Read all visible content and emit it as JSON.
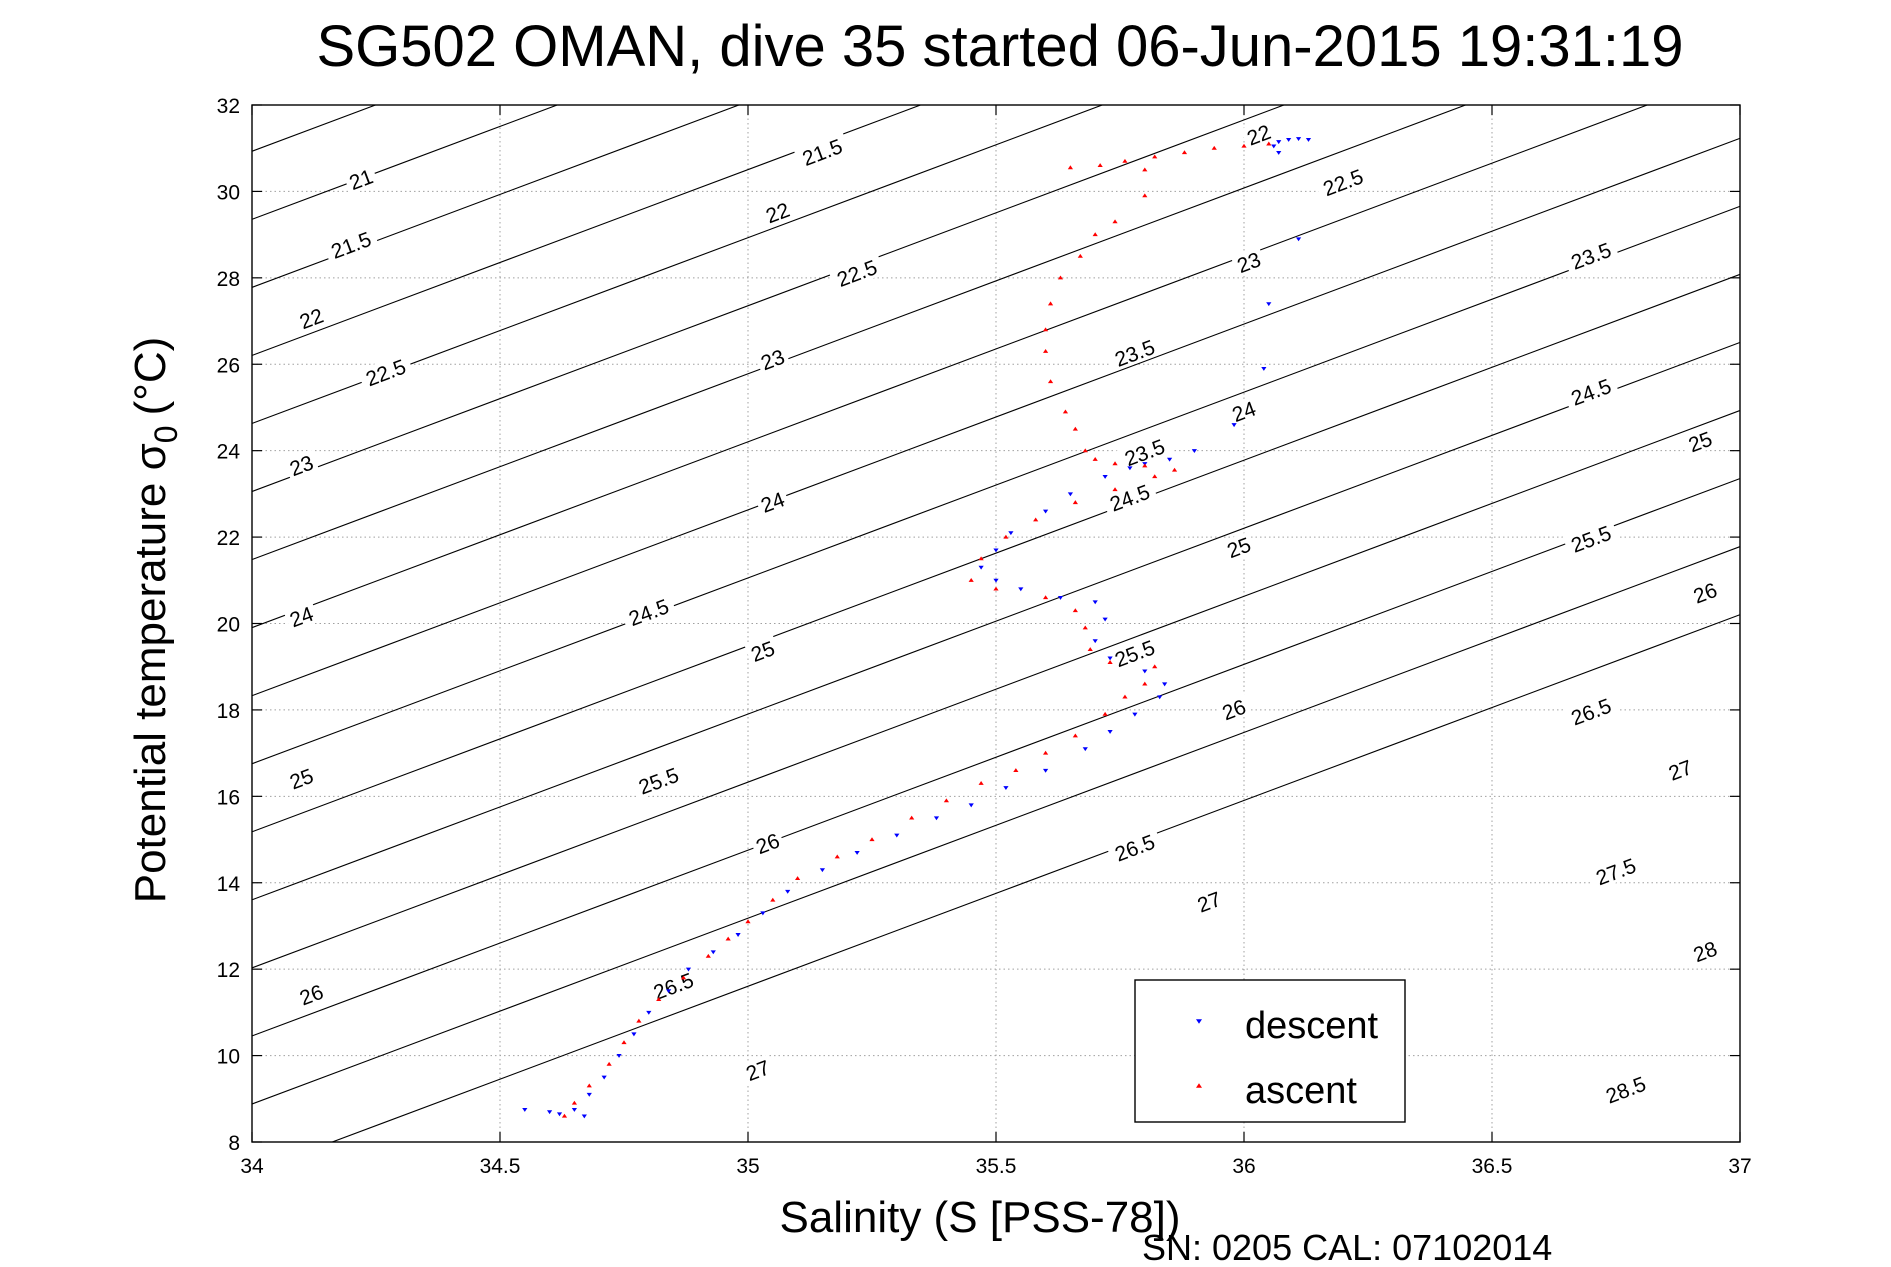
{
  "chart_data": {
    "type": "scatter",
    "title": "SG502 OMAN, dive 35 started 06-Jun-2015 19:31:19",
    "xlabel": "Salinity (S [PSS-78])",
    "ylabel_main": "Potential temperature σ",
    "ylabel_sub": "0",
    "ylabel_unit": "(°C)",
    "footer": "SN: 0205  CAL: 07102014",
    "xlim": [
      34,
      37
    ],
    "ylim": [
      8,
      32
    ],
    "x_ticks": [
      34,
      34.5,
      35,
      35.5,
      36,
      36.5,
      37
    ],
    "x_tick_labels": [
      "34",
      "34.5",
      "35",
      "35.5",
      "36",
      "36.5",
      "37"
    ],
    "y_ticks": [
      8,
      10,
      12,
      14,
      16,
      18,
      20,
      22,
      24,
      26,
      28,
      30,
      32
    ],
    "y_tick_labels": [
      "8",
      "10",
      "12",
      "14",
      "16",
      "18",
      "20",
      "22",
      "24",
      "26",
      "28",
      "30",
      "32"
    ],
    "grid": true,
    "legend_position": "bottom-right",
    "contour_levels": [
      21,
      21.5,
      22,
      22.5,
      23,
      23.5,
      24,
      24.5,
      25,
      25.5,
      26,
      26.5,
      27,
      27.5,
      28,
      28.5
    ],
    "contour_labels": [
      {
        "text": "21",
        "s": 34.22,
        "t": 30.27
      },
      {
        "text": "21.5",
        "s": 34.2,
        "t": 28.75
      },
      {
        "text": "22",
        "s": 34.12,
        "t": 27.05
      },
      {
        "text": "22.5",
        "s": 34.27,
        "t": 25.8
      },
      {
        "text": "23",
        "s": 34.1,
        "t": 23.65
      },
      {
        "text": "23.5",
        "s": 35.8,
        "t": 23.95
      },
      {
        "text": "24",
        "s": 34.1,
        "t": 20.15
      },
      {
        "text": "24.5",
        "s": 34.8,
        "t": 20.25
      },
      {
        "text": "25",
        "s": 34.1,
        "t": 16.4
      },
      {
        "text": "25.5",
        "s": 34.82,
        "t": 16.35
      },
      {
        "text": "26",
        "s": 34.12,
        "t": 11.4
      },
      {
        "text": "26.5",
        "s": 34.85,
        "t": 11.6
      },
      {
        "text": "27",
        "s": 35.02,
        "t": 9.65
      },
      {
        "text": "21.5",
        "s": 35.15,
        "t": 30.9
      },
      {
        "text": "22",
        "s": 35.06,
        "t": 29.5
      },
      {
        "text": "22.5",
        "s": 35.22,
        "t": 28.1
      },
      {
        "text": "23",
        "s": 35.05,
        "t": 26.1
      },
      {
        "text": "23.5",
        "s": 35.78,
        "t": 26.25
      },
      {
        "text": "24",
        "s": 35.05,
        "t": 22.8
      },
      {
        "text": "24.5",
        "s": 35.77,
        "t": 22.9
      },
      {
        "text": "25",
        "s": 35.03,
        "t": 19.35
      },
      {
        "text": "25.5",
        "s": 35.78,
        "t": 19.3
      },
      {
        "text": "26",
        "s": 35.04,
        "t": 14.9
      },
      {
        "text": "26.5",
        "s": 35.78,
        "t": 14.8
      },
      {
        "text": "27",
        "s": 35.93,
        "t": 13.55
      },
      {
        "text": "22",
        "s": 36.03,
        "t": 31.3
      },
      {
        "text": "22.5",
        "s": 36.2,
        "t": 30.2
      },
      {
        "text": "23",
        "s": 36.01,
        "t": 28.35
      },
      {
        "text": "24",
        "s": 36.0,
        "t": 24.9
      },
      {
        "text": "25",
        "s": 35.99,
        "t": 21.75
      },
      {
        "text": "26",
        "s": 35.98,
        "t": 18.0
      },
      {
        "text": "23.5",
        "s": 36.7,
        "t": 28.5
      },
      {
        "text": "24.5",
        "s": 36.7,
        "t": 25.35
      },
      {
        "text": "25.5",
        "s": 36.7,
        "t": 21.95
      },
      {
        "text": "26.5",
        "s": 36.7,
        "t": 17.95
      },
      {
        "text": "27.5",
        "s": 36.75,
        "t": 14.25
      },
      {
        "text": "25",
        "s": 36.92,
        "t": 24.2
      },
      {
        "text": "26",
        "s": 36.93,
        "t": 20.7
      },
      {
        "text": "27",
        "s": 36.88,
        "t": 16.6
      },
      {
        "text": "28",
        "s": 36.93,
        "t": 12.4
      },
      {
        "text": "28.5",
        "s": 36.77,
        "t": 9.2
      }
    ],
    "series": [
      {
        "name": "descent",
        "color": "#0000ff",
        "marker": "triangle-down",
        "points": [
          [
            36.13,
            31.2
          ],
          [
            36.11,
            31.22
          ],
          [
            36.09,
            31.2
          ],
          [
            36.07,
            31.15
          ],
          [
            36.06,
            31.05
          ],
          [
            36.07,
            30.9
          ],
          [
            36.11,
            28.9
          ],
          [
            36.05,
            27.4
          ],
          [
            36.04,
            25.9
          ],
          [
            35.98,
            24.6
          ],
          [
            35.9,
            24.0
          ],
          [
            35.85,
            23.8
          ],
          [
            35.8,
            23.7
          ],
          [
            35.77,
            23.6
          ],
          [
            35.72,
            23.4
          ],
          [
            35.65,
            23.0
          ],
          [
            35.6,
            22.6
          ],
          [
            35.53,
            22.1
          ],
          [
            35.5,
            21.7
          ],
          [
            35.47,
            21.3
          ],
          [
            35.5,
            21.0
          ],
          [
            35.55,
            20.8
          ],
          [
            35.63,
            20.6
          ],
          [
            35.7,
            20.5
          ],
          [
            35.72,
            20.1
          ],
          [
            35.7,
            19.6
          ],
          [
            35.73,
            19.2
          ],
          [
            35.8,
            18.9
          ],
          [
            35.84,
            18.6
          ],
          [
            35.83,
            18.3
          ],
          [
            35.78,
            17.9
          ],
          [
            35.73,
            17.5
          ],
          [
            35.68,
            17.1
          ],
          [
            35.6,
            16.6
          ],
          [
            35.52,
            16.2
          ],
          [
            35.45,
            15.8
          ],
          [
            35.38,
            15.5
          ],
          [
            35.3,
            15.1
          ],
          [
            35.22,
            14.7
          ],
          [
            35.15,
            14.3
          ],
          [
            35.08,
            13.8
          ],
          [
            35.03,
            13.3
          ],
          [
            34.98,
            12.8
          ],
          [
            34.93,
            12.4
          ],
          [
            34.88,
            12.0
          ],
          [
            34.84,
            11.5
          ],
          [
            34.8,
            11.0
          ],
          [
            34.77,
            10.5
          ],
          [
            34.74,
            10.0
          ],
          [
            34.71,
            9.5
          ],
          [
            34.68,
            9.1
          ],
          [
            34.65,
            8.75
          ],
          [
            34.67,
            8.6
          ],
          [
            34.62,
            8.65
          ],
          [
            34.55,
            8.75
          ],
          [
            34.6,
            8.7
          ]
        ]
      },
      {
        "name": "ascent",
        "color": "#ff0000",
        "marker": "triangle-up",
        "points": [
          [
            36.05,
            31.1
          ],
          [
            36.0,
            31.05
          ],
          [
            35.94,
            31.0
          ],
          [
            35.88,
            30.9
          ],
          [
            35.82,
            30.8
          ],
          [
            35.76,
            30.7
          ],
          [
            35.71,
            30.6
          ],
          [
            35.65,
            30.55
          ],
          [
            35.8,
            30.5
          ],
          [
            35.8,
            29.9
          ],
          [
            35.74,
            29.3
          ],
          [
            35.7,
            29.0
          ],
          [
            35.67,
            28.5
          ],
          [
            35.63,
            28.0
          ],
          [
            35.61,
            27.4
          ],
          [
            35.6,
            26.8
          ],
          [
            35.6,
            26.3
          ],
          [
            35.61,
            25.6
          ],
          [
            35.64,
            24.9
          ],
          [
            35.66,
            24.5
          ],
          [
            35.68,
            24.0
          ],
          [
            35.7,
            23.8
          ],
          [
            35.74,
            23.7
          ],
          [
            35.8,
            23.65
          ],
          [
            35.86,
            23.55
          ],
          [
            35.82,
            23.4
          ],
          [
            35.74,
            23.1
          ],
          [
            35.66,
            22.8
          ],
          [
            35.58,
            22.4
          ],
          [
            35.52,
            22.0
          ],
          [
            35.47,
            21.5
          ],
          [
            35.45,
            21.0
          ],
          [
            35.5,
            20.8
          ],
          [
            35.6,
            20.6
          ],
          [
            35.66,
            20.3
          ],
          [
            35.68,
            19.9
          ],
          [
            35.69,
            19.4
          ],
          [
            35.73,
            19.1
          ],
          [
            35.82,
            19.0
          ],
          [
            35.8,
            18.6
          ],
          [
            35.76,
            18.3
          ],
          [
            35.72,
            17.9
          ],
          [
            35.66,
            17.4
          ],
          [
            35.6,
            17.0
          ],
          [
            35.54,
            16.6
          ],
          [
            35.47,
            16.3
          ],
          [
            35.4,
            15.9
          ],
          [
            35.33,
            15.5
          ],
          [
            35.25,
            15.0
          ],
          [
            35.18,
            14.6
          ],
          [
            35.1,
            14.1
          ],
          [
            35.05,
            13.6
          ],
          [
            35.0,
            13.1
          ],
          [
            34.96,
            12.7
          ],
          [
            34.92,
            12.3
          ],
          [
            34.87,
            11.8
          ],
          [
            34.82,
            11.3
          ],
          [
            34.78,
            10.8
          ],
          [
            34.75,
            10.3
          ],
          [
            34.72,
            9.8
          ],
          [
            34.68,
            9.3
          ],
          [
            34.65,
            8.9
          ],
          [
            34.63,
            8.6
          ]
        ]
      }
    ],
    "legend": [
      {
        "name": "descent",
        "color": "#0000ff",
        "marker": "triangle-down"
      },
      {
        "name": "ascent",
        "color": "#ff0000",
        "marker": "triangle-up"
      }
    ]
  }
}
